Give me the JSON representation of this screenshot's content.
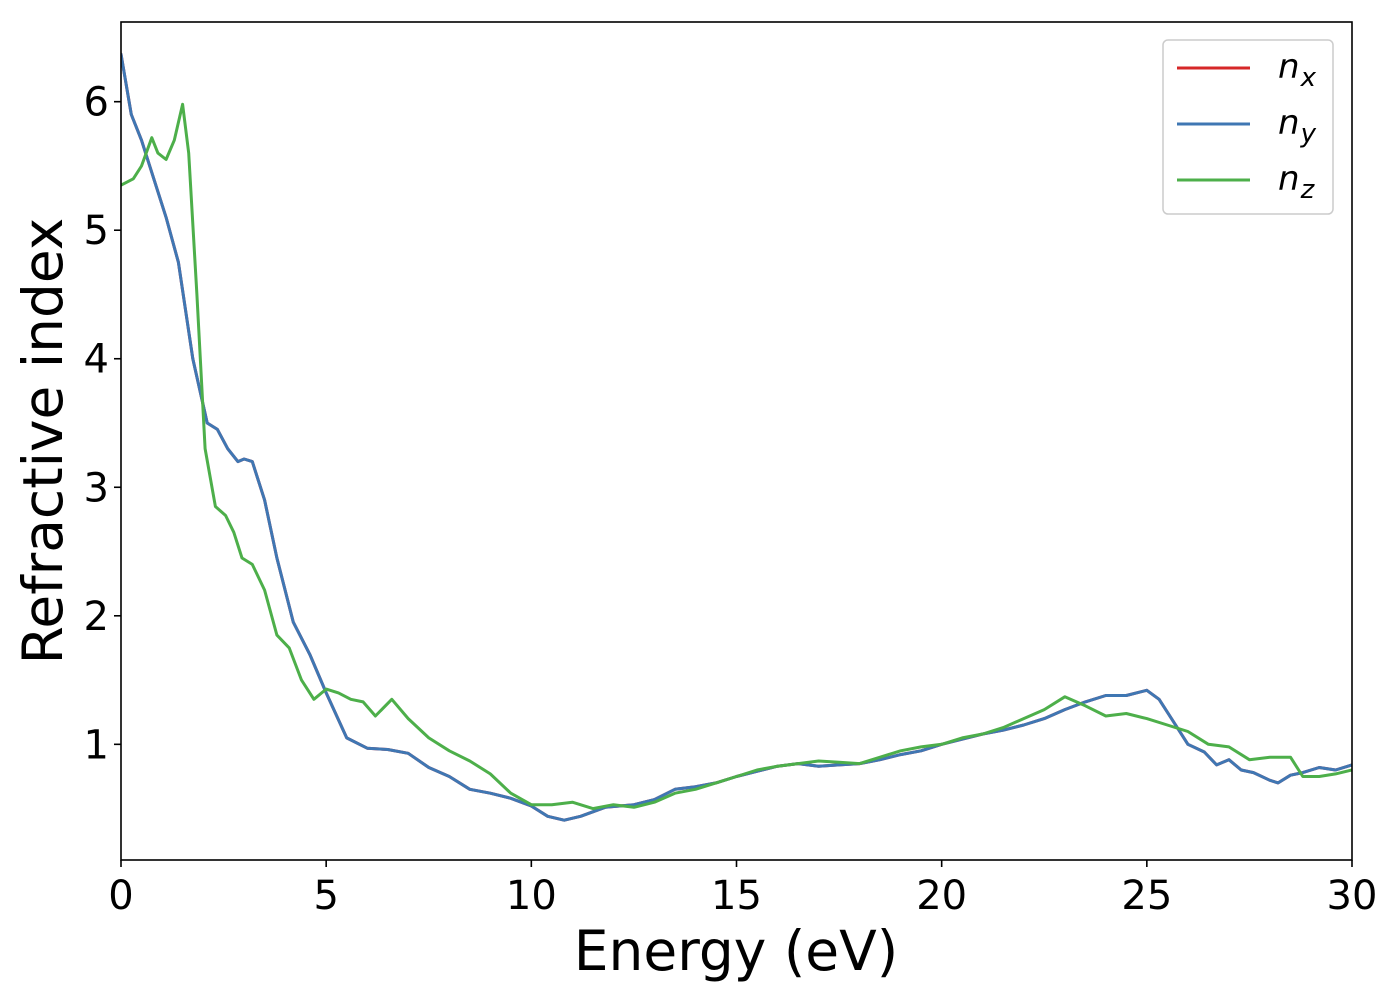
{
  "chart_data": {
    "type": "line",
    "title": "",
    "xlabel": "Energy (eV)",
    "ylabel": "Refractive index",
    "xlim": [
      0,
      30
    ],
    "ylim": [
      0.1,
      6.62
    ],
    "xticks": [
      0,
      5,
      10,
      15,
      20,
      25,
      30
    ],
    "xtick_labels": [
      "0",
      "5",
      "10",
      "15",
      "20",
      "25",
      "30"
    ],
    "yticks": [
      1,
      2,
      3,
      4,
      5,
      6
    ],
    "ytick_labels": [
      "1",
      "2",
      "3",
      "4",
      "5",
      "6"
    ],
    "grid": false,
    "legend_position": "top-right",
    "series": [
      {
        "name": "n_x",
        "label_base": "n",
        "label_sub": "x",
        "color": "#d62728",
        "x": [
          0,
          0.25,
          0.5,
          0.8,
          1.1,
          1.4,
          1.75,
          2.1,
          2.35,
          2.6,
          2.85,
          3.0,
          3.2,
          3.5,
          3.8,
          4.2,
          4.6,
          5.0,
          5.5,
          6.0,
          6.5,
          7.0,
          7.5,
          8.0,
          8.5,
          9.0,
          9.5,
          10.0,
          10.4,
          10.8,
          11.2,
          11.8,
          12.5,
          13.0,
          13.5,
          14.0,
          14.5,
          15.0,
          15.5,
          16.0,
          16.5,
          17.0,
          17.5,
          18.0,
          18.5,
          19.0,
          19.5,
          20.0,
          20.5,
          21.0,
          21.5,
          22.0,
          22.5,
          23.0,
          23.5,
          24.0,
          24.5,
          25.0,
          25.3,
          25.7,
          26.0,
          26.4,
          26.7,
          27.0,
          27.3,
          27.6,
          28.0,
          28.2,
          28.5,
          28.8,
          29.2,
          29.6,
          30.0
        ],
        "y": [
          6.37,
          5.9,
          5.7,
          5.4,
          5.1,
          4.75,
          4.0,
          3.5,
          3.45,
          3.3,
          3.2,
          3.22,
          3.2,
          2.9,
          2.45,
          1.95,
          1.7,
          1.4,
          1.05,
          0.97,
          0.96,
          0.93,
          0.82,
          0.75,
          0.65,
          0.62,
          0.58,
          0.52,
          0.44,
          0.41,
          0.44,
          0.51,
          0.53,
          0.57,
          0.65,
          0.67,
          0.7,
          0.75,
          0.79,
          0.83,
          0.85,
          0.83,
          0.84,
          0.85,
          0.88,
          0.92,
          0.95,
          1.0,
          1.04,
          1.08,
          1.11,
          1.15,
          1.2,
          1.27,
          1.33,
          1.38,
          1.38,
          1.42,
          1.35,
          1.15,
          1.0,
          0.94,
          0.84,
          0.88,
          0.8,
          0.78,
          0.72,
          0.7,
          0.76,
          0.78,
          0.82,
          0.8,
          0.84
        ]
      },
      {
        "name": "n_y",
        "label_base": "n",
        "label_sub": "y",
        "color": "#3f77b3",
        "x": [
          0,
          0.25,
          0.5,
          0.8,
          1.1,
          1.4,
          1.75,
          2.1,
          2.35,
          2.6,
          2.85,
          3.0,
          3.2,
          3.5,
          3.8,
          4.2,
          4.6,
          5.0,
          5.5,
          6.0,
          6.5,
          7.0,
          7.5,
          8.0,
          8.5,
          9.0,
          9.5,
          10.0,
          10.4,
          10.8,
          11.2,
          11.8,
          12.5,
          13.0,
          13.5,
          14.0,
          14.5,
          15.0,
          15.5,
          16.0,
          16.5,
          17.0,
          17.5,
          18.0,
          18.5,
          19.0,
          19.5,
          20.0,
          20.5,
          21.0,
          21.5,
          22.0,
          22.5,
          23.0,
          23.5,
          24.0,
          24.5,
          25.0,
          25.3,
          25.7,
          26.0,
          26.4,
          26.7,
          27.0,
          27.3,
          27.6,
          28.0,
          28.2,
          28.5,
          28.8,
          29.2,
          29.6,
          30.0
        ],
        "y": [
          6.37,
          5.9,
          5.7,
          5.4,
          5.1,
          4.75,
          4.0,
          3.5,
          3.45,
          3.3,
          3.2,
          3.22,
          3.2,
          2.9,
          2.45,
          1.95,
          1.7,
          1.4,
          1.05,
          0.97,
          0.96,
          0.93,
          0.82,
          0.75,
          0.65,
          0.62,
          0.58,
          0.52,
          0.44,
          0.41,
          0.44,
          0.51,
          0.53,
          0.57,
          0.65,
          0.67,
          0.7,
          0.75,
          0.79,
          0.83,
          0.85,
          0.83,
          0.84,
          0.85,
          0.88,
          0.92,
          0.95,
          1.0,
          1.04,
          1.08,
          1.11,
          1.15,
          1.2,
          1.27,
          1.33,
          1.38,
          1.38,
          1.42,
          1.35,
          1.15,
          1.0,
          0.94,
          0.84,
          0.88,
          0.8,
          0.78,
          0.72,
          0.7,
          0.76,
          0.78,
          0.82,
          0.8,
          0.84
        ]
      },
      {
        "name": "n_z",
        "label_base": "n",
        "label_sub": "z",
        "color": "#4daf4a",
        "x": [
          0,
          0.3,
          0.5,
          0.75,
          0.9,
          1.1,
          1.3,
          1.5,
          1.65,
          1.85,
          2.05,
          2.3,
          2.55,
          2.75,
          2.95,
          3.2,
          3.5,
          3.8,
          4.1,
          4.4,
          4.7,
          5.0,
          5.3,
          5.6,
          5.9,
          6.2,
          6.6,
          7.0,
          7.5,
          8.0,
          8.5,
          9.0,
          9.5,
          10.0,
          10.5,
          11.0,
          11.5,
          12.0,
          12.5,
          13.0,
          13.5,
          14.0,
          14.5,
          15.0,
          15.5,
          16.0,
          16.5,
          17.0,
          17.5,
          18.0,
          18.5,
          19.0,
          19.5,
          20.0,
          20.5,
          21.0,
          21.5,
          22.0,
          22.5,
          23.0,
          23.5,
          24.0,
          24.5,
          25.0,
          25.5,
          26.0,
          26.5,
          27.0,
          27.5,
          28.0,
          28.5,
          28.8,
          29.2,
          29.6,
          30.0
        ],
        "y": [
          5.35,
          5.4,
          5.5,
          5.72,
          5.6,
          5.55,
          5.7,
          5.98,
          5.6,
          4.5,
          3.3,
          2.85,
          2.78,
          2.65,
          2.45,
          2.4,
          2.2,
          1.85,
          1.75,
          1.5,
          1.35,
          1.43,
          1.4,
          1.35,
          1.33,
          1.22,
          1.35,
          1.2,
          1.05,
          0.95,
          0.87,
          0.77,
          0.62,
          0.53,
          0.53,
          0.55,
          0.5,
          0.53,
          0.51,
          0.55,
          0.62,
          0.65,
          0.7,
          0.75,
          0.8,
          0.83,
          0.85,
          0.87,
          0.86,
          0.85,
          0.9,
          0.95,
          0.98,
          1.0,
          1.05,
          1.08,
          1.13,
          1.2,
          1.27,
          1.37,
          1.3,
          1.22,
          1.24,
          1.2,
          1.15,
          1.1,
          1.0,
          0.98,
          0.88,
          0.9,
          0.9,
          0.75,
          0.75,
          0.77,
          0.8
        ]
      }
    ]
  }
}
